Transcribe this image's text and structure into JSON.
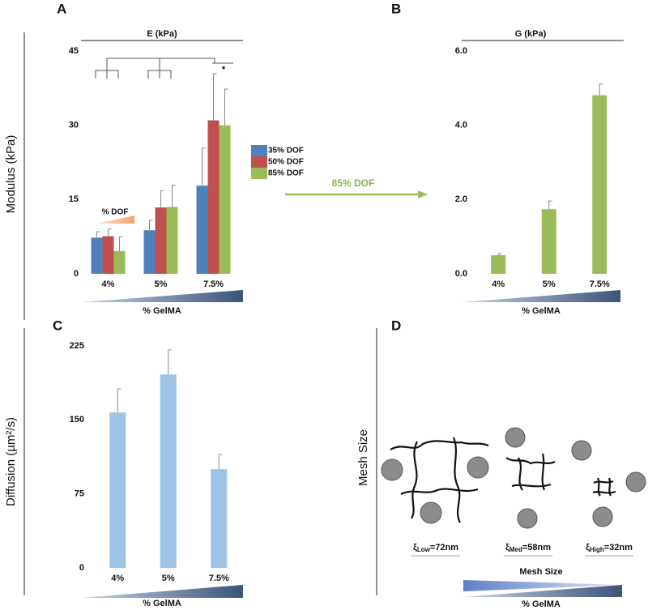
{
  "panels": {
    "letters": [
      "A",
      "B",
      "C",
      "D"
    ],
    "modulus_label": "Modulus (kPa)",
    "diffusion_label": "Diffusion (µm²/s)",
    "arrow_label": "85% DOF",
    "significance": "*",
    "mesh_title": "Mesh Size",
    "mesh_labels": [
      {
        "symbol": "ξ",
        "sub": "Low",
        "text": "=72nm"
      },
      {
        "symbol": "ξ",
        "sub": "Med",
        "text": "=58nm"
      },
      {
        "symbol": "ξ",
        "sub": "High",
        "text": "=32nm"
      }
    ],
    "mesh_bar_label": "Mesh Size",
    "mesh_xlabel": "% GelMA"
  },
  "chart_data": [
    {
      "type": "bar",
      "title": "E (kPa)",
      "categories": [
        "4%",
        "5%",
        "7.5%"
      ],
      "series": [
        {
          "name": "35% DOF",
          "color": "#4f81bd",
          "values": [
            7.3,
            8.8,
            17.8
          ],
          "errors": [
            1.2,
            2.0,
            7.6
          ]
        },
        {
          "name": "50% DOF",
          "color": "#c0504d",
          "values": [
            7.6,
            13.4,
            31.0
          ],
          "errors": [
            1.4,
            3.4,
            9.4
          ]
        },
        {
          "name": "85% DOF",
          "color": "#9bbb59",
          "values": [
            4.6,
            13.5,
            30.0
          ],
          "errors": [
            2.9,
            4.4,
            7.3
          ]
        }
      ],
      "ylim": [
        0,
        45
      ],
      "yticks": [
        0,
        15,
        30,
        45
      ],
      "xlabel": "% GelMA",
      "annotation": "% DOF"
    },
    {
      "type": "bar",
      "title": "G (kPa)",
      "categories": [
        "4%",
        "5%",
        "7.5%"
      ],
      "series": [
        {
          "name": "85% DOF",
          "color": "#9bbb59",
          "values": [
            0.5,
            1.74,
            4.81
          ],
          "errors": [
            0.04,
            0.22,
            0.3
          ]
        }
      ],
      "ylim": [
        0,
        6
      ],
      "yticks": [
        {
          "value": 0,
          "label": "0.0"
        },
        {
          "value": 2,
          "label": "2.0"
        },
        {
          "value": 4,
          "label": "4.0"
        },
        {
          "value": 6,
          "label": "6.0"
        }
      ],
      "xlabel": "% GelMA"
    },
    {
      "type": "bar",
      "categories": [
        "4%",
        "5%",
        "7.5%"
      ],
      "series": [
        {
          "name": "Diffusion",
          "color": "#9dc3e6",
          "values": [
            157.5,
            196,
            100
          ],
          "errors": [
            24,
            25,
            15
          ]
        }
      ],
      "ylim": [
        0,
        225
      ],
      "yticks": [
        0,
        75,
        150,
        225
      ],
      "xlabel": "% GelMA"
    }
  ]
}
